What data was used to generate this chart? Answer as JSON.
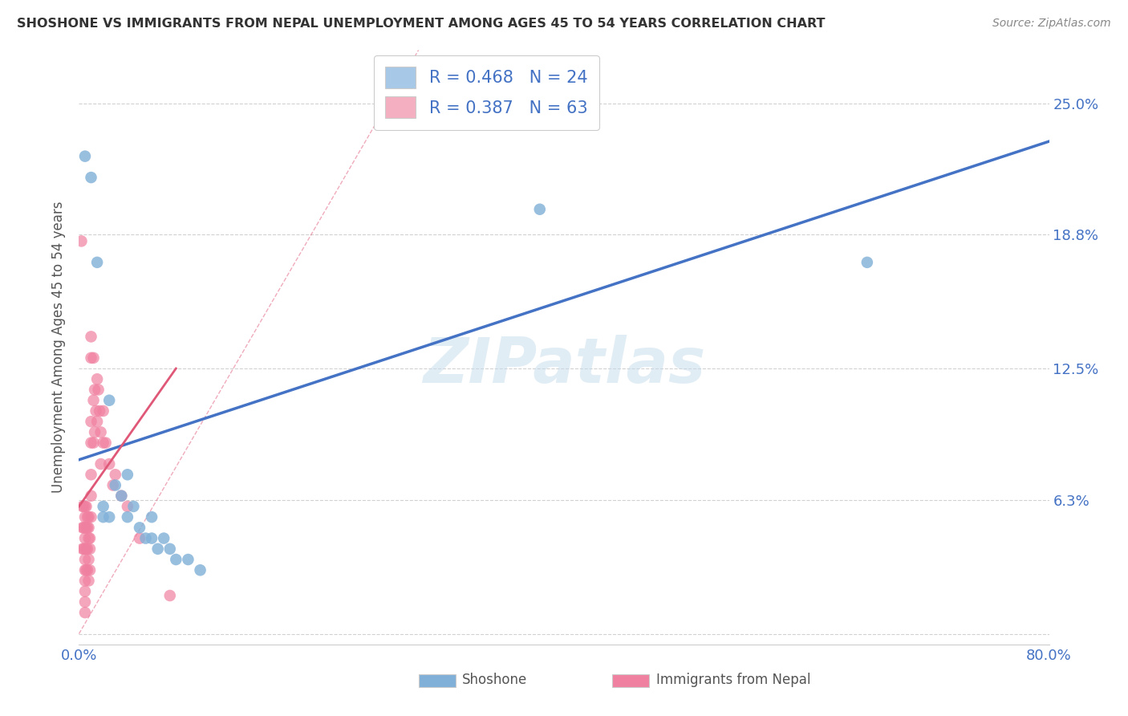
{
  "title": "SHOSHONE VS IMMIGRANTS FROM NEPAL UNEMPLOYMENT AMONG AGES 45 TO 54 YEARS CORRELATION CHART",
  "source": "Source: ZipAtlas.com",
  "ylabel": "Unemployment Among Ages 45 to 54 years",
  "xlim": [
    0.0,
    0.8
  ],
  "ylim": [
    -0.005,
    0.275
  ],
  "yticks_right": [
    0.25,
    0.188,
    0.125,
    0.063,
    0.0
  ],
  "ytick_labels_right": [
    "25.0%",
    "18.8%",
    "12.5%",
    "6.3%",
    ""
  ],
  "legend_entries": [
    {
      "label": "R = 0.468   N = 24",
      "color": "#a8c8e8"
    },
    {
      "label": "R = 0.387   N = 63",
      "color": "#f4b0c0"
    }
  ],
  "watermark": "ZIPatlas",
  "shoshone_color": "#80b0d8",
  "nepal_color": "#f080a0",
  "shoshone_line_color": "#4472c4",
  "nepal_line_color": "#e05878",
  "background_color": "#ffffff",
  "grid_color": "#cccccc",
  "shoshone_scatter_x": [
    0.005,
    0.01,
    0.015,
    0.02,
    0.02,
    0.025,
    0.025,
    0.03,
    0.035,
    0.04,
    0.04,
    0.045,
    0.05,
    0.055,
    0.06,
    0.06,
    0.065,
    0.07,
    0.075,
    0.08,
    0.09,
    0.1,
    0.38,
    0.65
  ],
  "shoshone_scatter_y": [
    0.225,
    0.215,
    0.175,
    0.06,
    0.055,
    0.11,
    0.055,
    0.07,
    0.065,
    0.075,
    0.055,
    0.06,
    0.05,
    0.045,
    0.055,
    0.045,
    0.04,
    0.045,
    0.04,
    0.035,
    0.035,
    0.03,
    0.2,
    0.175
  ],
  "nepal_scatter_x": [
    0.002,
    0.003,
    0.003,
    0.003,
    0.004,
    0.004,
    0.004,
    0.005,
    0.005,
    0.005,
    0.005,
    0.005,
    0.005,
    0.005,
    0.005,
    0.005,
    0.005,
    0.005,
    0.006,
    0.006,
    0.006,
    0.006,
    0.007,
    0.007,
    0.007,
    0.007,
    0.008,
    0.008,
    0.008,
    0.008,
    0.008,
    0.009,
    0.009,
    0.009,
    0.01,
    0.01,
    0.01,
    0.01,
    0.01,
    0.01,
    0.01,
    0.012,
    0.012,
    0.012,
    0.013,
    0.013,
    0.014,
    0.015,
    0.015,
    0.016,
    0.017,
    0.018,
    0.018,
    0.02,
    0.02,
    0.022,
    0.025,
    0.028,
    0.03,
    0.035,
    0.04,
    0.05,
    0.075
  ],
  "nepal_scatter_y": [
    0.185,
    0.06,
    0.05,
    0.04,
    0.06,
    0.05,
    0.04,
    0.06,
    0.055,
    0.05,
    0.045,
    0.04,
    0.035,
    0.03,
    0.025,
    0.02,
    0.015,
    0.01,
    0.06,
    0.05,
    0.04,
    0.03,
    0.055,
    0.05,
    0.04,
    0.03,
    0.055,
    0.05,
    0.045,
    0.035,
    0.025,
    0.045,
    0.04,
    0.03,
    0.14,
    0.13,
    0.1,
    0.09,
    0.075,
    0.065,
    0.055,
    0.13,
    0.11,
    0.09,
    0.115,
    0.095,
    0.105,
    0.12,
    0.1,
    0.115,
    0.105,
    0.095,
    0.08,
    0.105,
    0.09,
    0.09,
    0.08,
    0.07,
    0.075,
    0.065,
    0.06,
    0.045,
    0.018
  ],
  "shoshone_trendline_x": [
    0.0,
    0.8
  ],
  "shoshone_trendline_y": [
    0.082,
    0.232
  ],
  "nepal_trendline_x": [
    0.0,
    0.08
  ],
  "nepal_trendline_y": [
    0.06,
    0.125
  ]
}
